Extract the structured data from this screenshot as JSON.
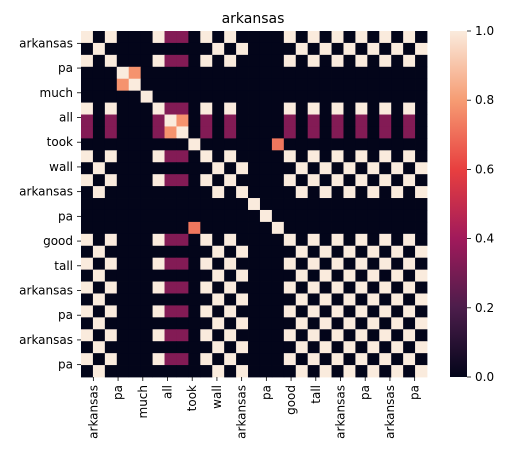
{
  "chart_data": {
    "type": "heatmap",
    "title": "arkansas",
    "xlabel": "",
    "ylabel": "",
    "x_tick_labels": [
      "arkansas",
      "pa",
      "much",
      "all",
      "took",
      "wall",
      "arkansas",
      "pa",
      "good",
      "tall",
      "arkansas",
      "pa",
      "arkansas",
      "pa"
    ],
    "y_tick_labels": [
      "arkansas",
      "pa",
      "much",
      "all",
      "took",
      "wall",
      "arkansas",
      "pa",
      "good",
      "tall",
      "arkansas",
      "pa",
      "arkansas",
      "pa"
    ],
    "colorbar": {
      "min": 0.0,
      "max": 1.0,
      "ticks": [
        "0.0",
        "0.2",
        "0.4",
        "0.6",
        "0.8",
        "1.0"
      ]
    },
    "row_tokens": [
      "arkansas",
      "pa",
      "arkansas",
      "much",
      "much",
      "all",
      "arkansas",
      "took",
      "took",
      "wall",
      "arkansas",
      "pa",
      "arkansas",
      "pa",
      "good",
      "good",
      "tall",
      "arkansas",
      "pa",
      "arkansas",
      "pa",
      "arkansas",
      "pa",
      "arkansas",
      "pa",
      "arkansas",
      "pa",
      "arkansas",
      "pa"
    ],
    "col_tokens": [
      "arkansas",
      "pa",
      "arkansas",
      "much",
      "much",
      "all",
      "arkansas",
      "took",
      "took",
      "wall",
      "arkansas",
      "pa",
      "arkansas",
      "pa",
      "good",
      "good",
      "tall",
      "arkansas",
      "pa",
      "arkansas",
      "pa",
      "arkansas",
      "pa",
      "arkansas",
      "pa",
      "arkansas",
      "pa",
      "arkansas",
      "pa"
    ],
    "special_cells": [
      {
        "row": 3,
        "col": 4,
        "value": 0.78
      },
      {
        "row": 4,
        "col": 3,
        "value": 0.78
      },
      {
        "row": 7,
        "col": 8,
        "value": 0.78
      },
      {
        "row": 8,
        "col": 7,
        "value": 0.78
      },
      {
        "row": 9,
        "col": 16,
        "value": 0.72
      },
      {
        "row": 16,
        "col": 9,
        "value": 0.72
      }
    ]
  }
}
